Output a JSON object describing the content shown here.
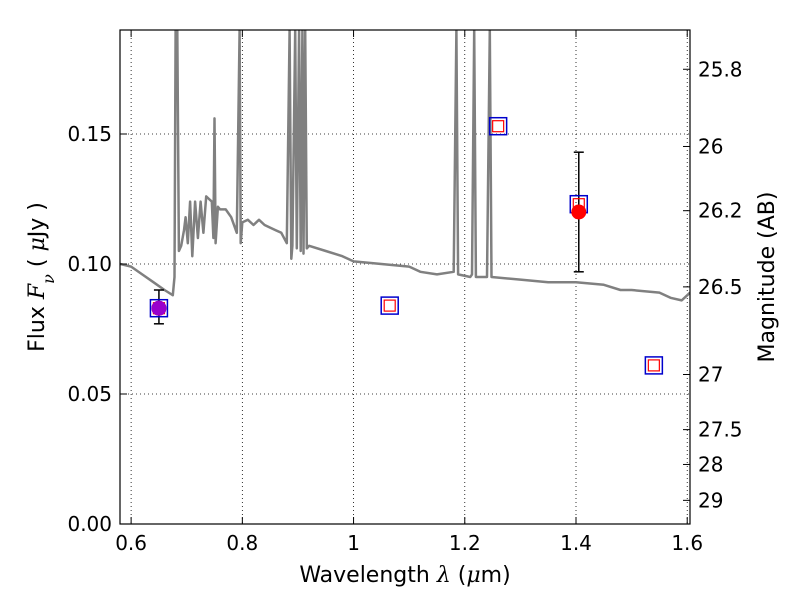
{
  "chart_data": {
    "type": "scatter",
    "xlabel": "Wavelength  λ (μm)",
    "ylabel": "Flux  F_ν  ( μJy )",
    "ylabel_right": "Magnitude (AB)",
    "xlim": [
      0.58,
      1.605
    ],
    "ylim": [
      0.0,
      0.19
    ],
    "grid": true,
    "x_ticks": [
      {
        "value": 0.6,
        "label": "0.6"
      },
      {
        "value": 0.8,
        "label": "0.8"
      },
      {
        "value": 1.0,
        "label": "1"
      },
      {
        "value": 1.2,
        "label": "1.2"
      },
      {
        "value": 1.4,
        "label": "1.4"
      },
      {
        "value": 1.6,
        "label": "1.6"
      }
    ],
    "y_ticks": [
      {
        "value": 0.0,
        "label": "0.00"
      },
      {
        "value": 0.05,
        "label": "0.05"
      },
      {
        "value": 0.1,
        "label": "0.10"
      },
      {
        "value": 0.15,
        "label": "0.15"
      }
    ],
    "mag_ticks": [
      {
        "flux": 0.1749,
        "label": "25.8"
      },
      {
        "flux": 0.1452,
        "label": "26"
      },
      {
        "flux": 0.1205,
        "label": "26.2"
      },
      {
        "flux": 0.0912,
        "label": "26.5"
      },
      {
        "flux": 0.0575,
        "label": "27"
      },
      {
        "flux": 0.0363,
        "label": "27.5"
      },
      {
        "flux": 0.0229,
        "label": "28"
      },
      {
        "flux": 0.0091,
        "label": "29"
      }
    ],
    "sed_model": {
      "color": "#808080",
      "points": [
        [
          0.58,
          0.1
        ],
        [
          0.6,
          0.099
        ],
        [
          0.62,
          0.096
        ],
        [
          0.64,
          0.093
        ],
        [
          0.66,
          0.09
        ],
        [
          0.675,
          0.088
        ],
        [
          0.678,
          0.095
        ],
        [
          0.68,
          0.19
        ],
        [
          0.683,
          0.19
        ],
        [
          0.686,
          0.105
        ],
        [
          0.69,
          0.107
        ],
        [
          0.695,
          0.113
        ],
        [
          0.698,
          0.118
        ],
        [
          0.702,
          0.108
        ],
        [
          0.706,
          0.124
        ],
        [
          0.71,
          0.103
        ],
        [
          0.715,
          0.124
        ],
        [
          0.72,
          0.11
        ],
        [
          0.725,
          0.124
        ],
        [
          0.73,
          0.112
        ],
        [
          0.735,
          0.126
        ],
        [
          0.74,
          0.125
        ],
        [
          0.745,
          0.124
        ],
        [
          0.748,
          0.11
        ],
        [
          0.75,
          0.156
        ],
        [
          0.752,
          0.108
        ],
        [
          0.756,
          0.122
        ],
        [
          0.76,
          0.121
        ],
        [
          0.77,
          0.121
        ],
        [
          0.78,
          0.118
        ],
        [
          0.79,
          0.112
        ],
        [
          0.795,
          0.19
        ],
        [
          0.797,
          0.108
        ],
        [
          0.8,
          0.116
        ],
        [
          0.81,
          0.117
        ],
        [
          0.82,
          0.115
        ],
        [
          0.83,
          0.117
        ],
        [
          0.84,
          0.115
        ],
        [
          0.85,
          0.114
        ],
        [
          0.86,
          0.113
        ],
        [
          0.87,
          0.112
        ],
        [
          0.88,
          0.108
        ],
        [
          0.885,
          0.19
        ],
        [
          0.888,
          0.102
        ],
        [
          0.89,
          0.107
        ],
        [
          0.895,
          0.19
        ],
        [
          0.898,
          0.106
        ],
        [
          0.902,
          0.19
        ],
        [
          0.905,
          0.105
        ],
        [
          0.908,
          0.19
        ],
        [
          0.91,
          0.104
        ],
        [
          0.913,
          0.19
        ],
        [
          0.916,
          0.106
        ],
        [
          0.92,
          0.107
        ],
        [
          0.95,
          0.105
        ],
        [
          0.98,
          0.103
        ],
        [
          1.0,
          0.101
        ],
        [
          1.05,
          0.1
        ],
        [
          1.1,
          0.099
        ],
        [
          1.12,
          0.097
        ],
        [
          1.15,
          0.096
        ],
        [
          1.18,
          0.097
        ],
        [
          1.185,
          0.19
        ],
        [
          1.188,
          0.096
        ],
        [
          1.21,
          0.095
        ],
        [
          1.213,
          0.096
        ],
        [
          1.217,
          0.19
        ],
        [
          1.22,
          0.095
        ],
        [
          1.24,
          0.095
        ],
        [
          1.245,
          0.19
        ],
        [
          1.248,
          0.095
        ],
        [
          1.3,
          0.094
        ],
        [
          1.35,
          0.093
        ],
        [
          1.4,
          0.093
        ],
        [
          1.45,
          0.092
        ],
        [
          1.48,
          0.09
        ],
        [
          1.5,
          0.09
        ],
        [
          1.55,
          0.089
        ],
        [
          1.57,
          0.087
        ],
        [
          1.59,
          0.086
        ],
        [
          1.605,
          0.089
        ]
      ]
    },
    "observed": {
      "color": "#ff0000",
      "points": [
        {
          "x": 0.65,
          "y": 0.083,
          "yerr_low": 0.077,
          "yerr_high": 0.09
        },
        {
          "x": 1.405,
          "y": 0.12,
          "yerr_low": 0.097,
          "yerr_high": 0.143
        }
      ]
    },
    "extra_marker": {
      "color": "#9900cc",
      "x": 0.65,
      "y": 0.083
    },
    "model_fluxes": {
      "outer_color": "#0000cc",
      "inner_color": "#ff0000",
      "points": [
        {
          "x": 0.65,
          "y": 0.083
        },
        {
          "x": 1.065,
          "y": 0.084
        },
        {
          "x": 1.26,
          "y": 0.153
        },
        {
          "x": 1.405,
          "y": 0.123
        },
        {
          "x": 1.54,
          "y": 0.061
        }
      ]
    }
  }
}
